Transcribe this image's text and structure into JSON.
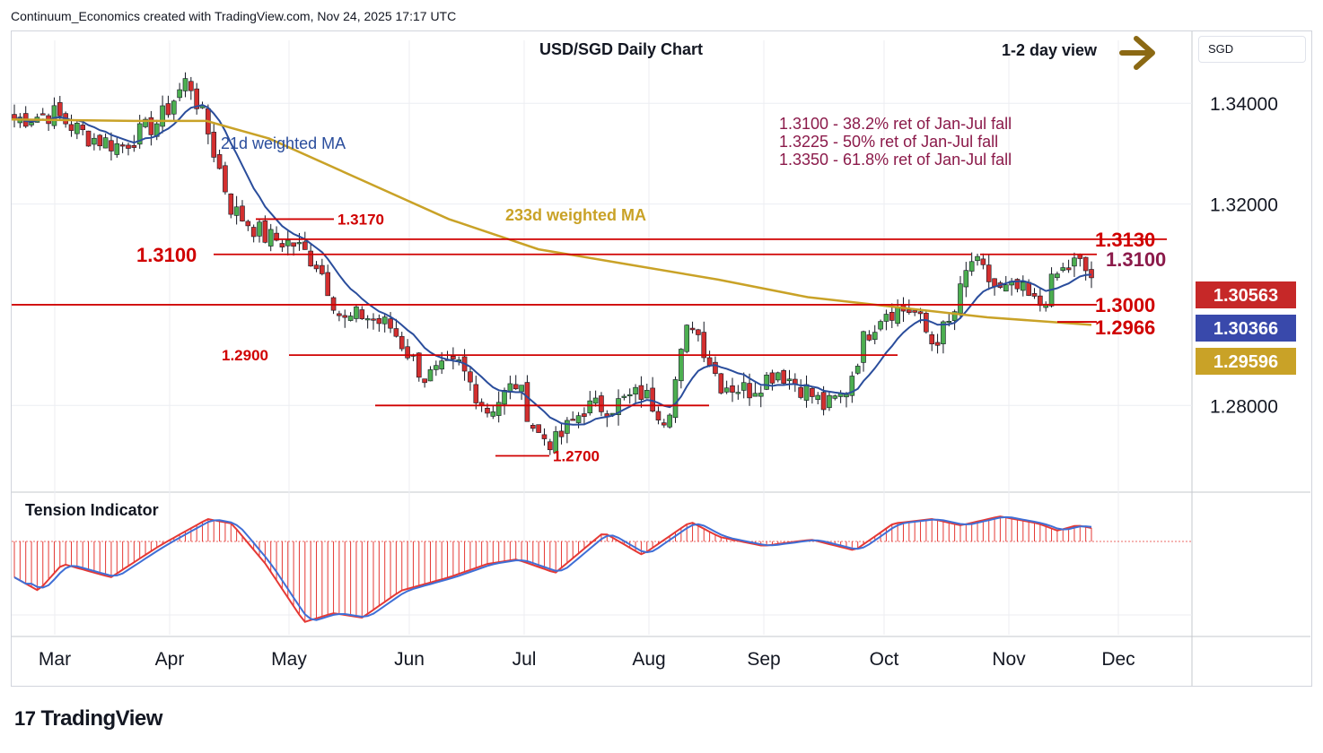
{
  "header": {
    "caption": "Continuum_Economics created with TradingView.com, Nov 24, 2025 17:17 UTC"
  },
  "symbol_box": {
    "label": "SGD"
  },
  "branding": {
    "logo_text": "TradingView",
    "logo_mark": "17"
  },
  "chart_data": {
    "type": "candlestick",
    "title": "USD/SGD Daily Chart",
    "view": "1-2 day view",
    "view_arrow": "right-arrow-icon",
    "colors": {
      "up": "#4caf50",
      "down": "#d32f2f",
      "ma21": "#2a4d9c",
      "ma233": "#c9a227",
      "level_line": "#d00000",
      "fib_text": "#8b1a4a",
      "tension_red": "#e53935",
      "tension_blue": "#3f6fd6"
    },
    "x_ticks": [
      "Mar",
      "Apr",
      "May",
      "Jun",
      "Jul",
      "Aug",
      "Sep",
      "Oct",
      "Nov",
      "Dec"
    ],
    "y_ticks": [
      "1.34000",
      "1.32000",
      "1.28000"
    ],
    "ylim": [
      1.2635,
      1.3525
    ],
    "price_tags": [
      {
        "text": "1.30563",
        "bg": "#c62828",
        "value": 1.30563
      },
      {
        "text": "1.30366",
        "bg": "#3949ab",
        "value": 1.30366
      },
      {
        "text": "1.29596",
        "bg": "#c9a227",
        "value": 1.29596
      }
    ],
    "levels": [
      {
        "label": "1.3170",
        "value": 1.317
      },
      {
        "label": "1.3130",
        "value": 1.313
      },
      {
        "label": "1.3100",
        "value": 1.31
      },
      {
        "label": "1.3100",
        "value": 1.31
      },
      {
        "label": "1.3000",
        "value": 1.3
      },
      {
        "label": "1.2966",
        "value": 1.2966
      },
      {
        "label": "1.2900",
        "value": 1.29
      },
      {
        "label": "1.2700",
        "value": 1.27
      }
    ],
    "fib_notes": [
      "1.3100 - 38.2% ret of Jan-Jul fall",
      "1.3225 - 50% ret of Jan-Jul fall",
      "1.3350 - 61.8% ret of Jan-Jul fall"
    ],
    "series_labels": {
      "ma21": "21d weighted MA",
      "ma233": "233d weighted MA"
    },
    "indicator": {
      "title": "Tension Indicator"
    },
    "seed_close": 1.3368
  }
}
